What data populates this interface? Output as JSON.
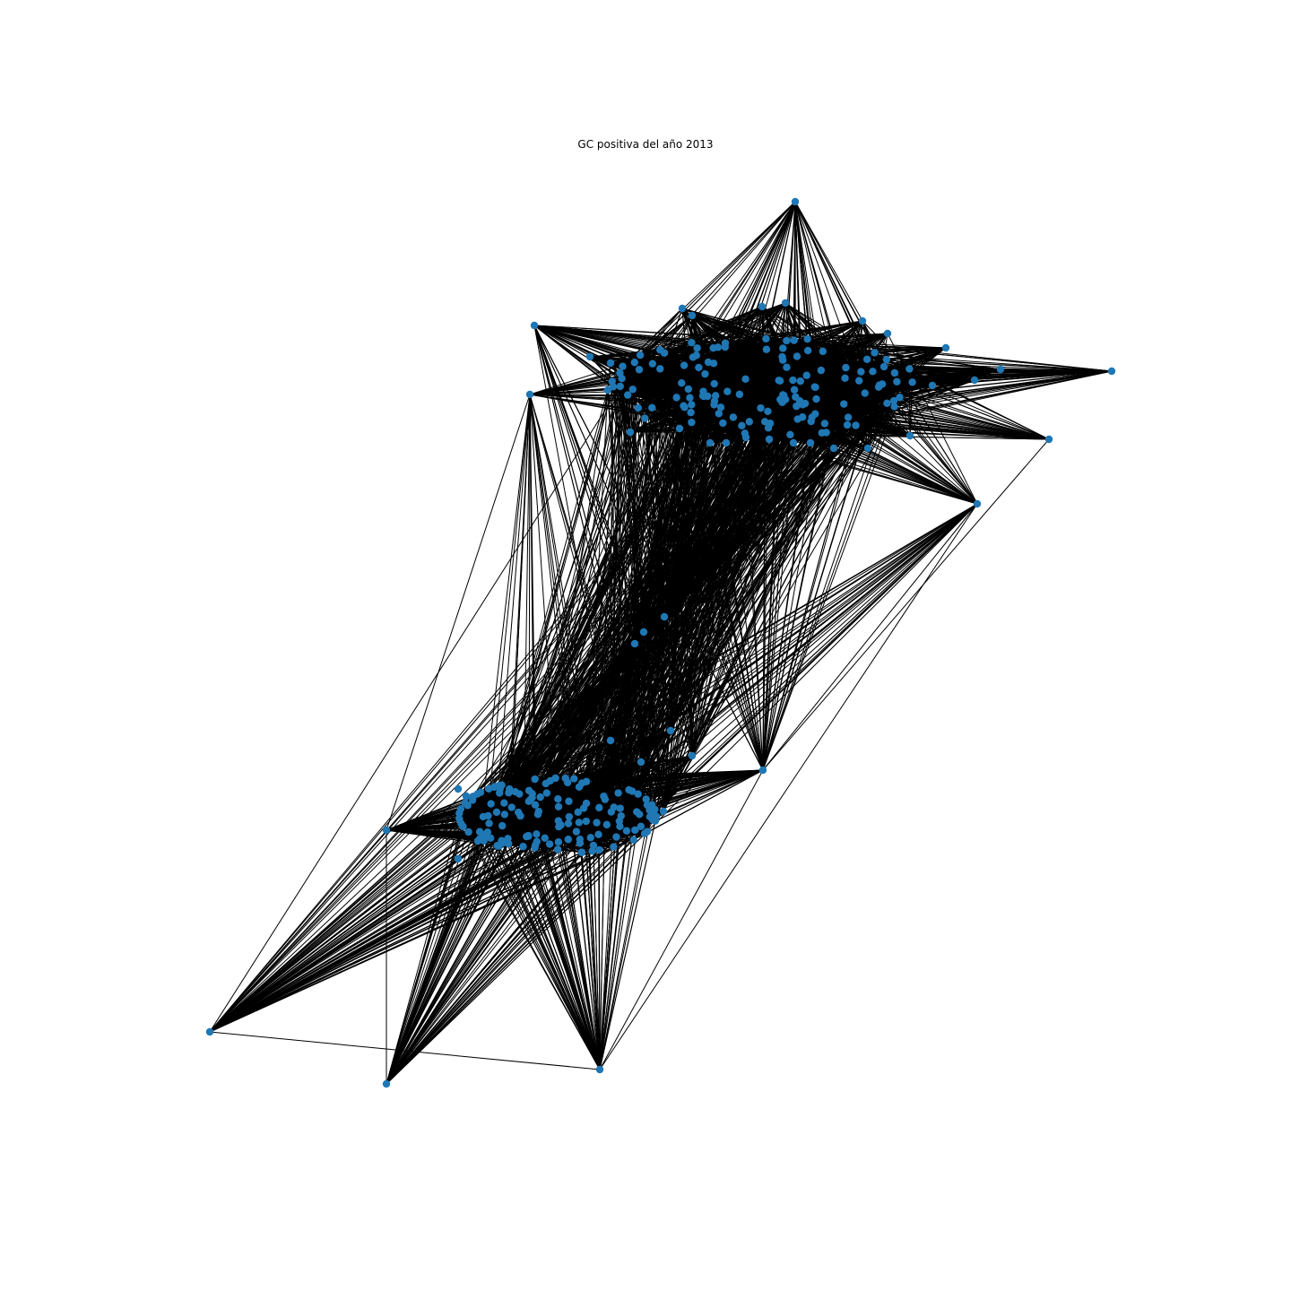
{
  "figure": {
    "title": "GC positiva del año 2013",
    "node_color": "#1f77b4",
    "edge_color": "#000000",
    "background": "#ffffff"
  }
}
